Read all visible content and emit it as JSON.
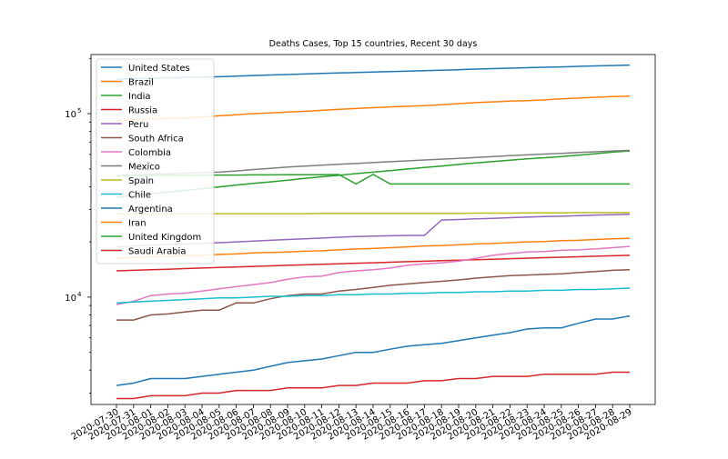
{
  "chart_data": {
    "type": "line",
    "title": "Deaths Cases, Top 15 countries, Recent 30 days",
    "xlabel": "",
    "ylabel": "",
    "y_scale": "log",
    "ylim": [
      2600,
      210000
    ],
    "grid": false,
    "legend_position": "upper-left",
    "x": [
      "2020-07-30",
      "2020-07-31",
      "2020-08-01",
      "2020-08-02",
      "2020-08-03",
      "2020-08-04",
      "2020-08-05",
      "2020-08-06",
      "2020-08-07",
      "2020-08-08",
      "2020-08-09",
      "2020-08-10",
      "2020-08-11",
      "2020-08-12",
      "2020-08-13",
      "2020-08-14",
      "2020-08-15",
      "2020-08-16",
      "2020-08-17",
      "2020-08-18",
      "2020-08-19",
      "2020-08-20",
      "2020-08-21",
      "2020-08-22",
      "2020-08-23",
      "2020-08-24",
      "2020-08-25",
      "2020-08-26",
      "2020-08-27",
      "2020-08-28",
      "2020-08-29"
    ],
    "y_ticks": [
      {
        "value": 10000,
        "label": "10",
        "exponent": "4"
      },
      {
        "value": 100000,
        "label": "10",
        "exponent": "5"
      }
    ],
    "series": [
      {
        "name": "United States",
        "color": "#1f77b4",
        "values": [
          154000,
          155200,
          156000,
          156800,
          157300,
          157900,
          158900,
          160100,
          161300,
          162400,
          163400,
          164500,
          165600,
          166600,
          167600,
          168700,
          169600,
          170500,
          171500,
          172400,
          173600,
          174900,
          175900,
          177000,
          178000,
          179000,
          179900,
          181000,
          182000,
          183000,
          184000
        ]
      },
      {
        "name": "Brazil",
        "color": "#ff7f0e",
        "values": [
          91300,
          92500,
          93600,
          94100,
          94700,
          95800,
          97300,
          98600,
          100000,
          101000,
          102000,
          103000,
          104200,
          105500,
          106600,
          107800,
          108800,
          109700,
          110500,
          111900,
          113400,
          114800,
          115900,
          117000,
          117800,
          118800,
          120400,
          121600,
          122800,
          123900,
          124900
        ]
      },
      {
        "name": "India",
        "color": "#2ca02c",
        "values": [
          34900,
          35800,
          36600,
          37400,
          38200,
          39000,
          39900,
          40800,
          41700,
          42500,
          43400,
          44400,
          45300,
          46100,
          47100,
          48000,
          48900,
          49900,
          50900,
          51800,
          52900,
          53900,
          54800,
          55800,
          56700,
          57500,
          58400,
          59400,
          60500,
          61700,
          62600
        ]
      },
      {
        "name": "Russia",
        "color": "#d62728",
        "values": [
          13900,
          14000,
          14100,
          14200,
          14300,
          14400,
          14500,
          14600,
          14700,
          14800,
          14900,
          15000,
          15100,
          15200,
          15300,
          15400,
          15500,
          15600,
          15700,
          15800,
          15900,
          16000,
          16100,
          16200,
          16300,
          16400,
          16500,
          16600,
          16700,
          16800,
          16900
        ]
      },
      {
        "name": "Peru",
        "color": "#9467bd",
        "values": [
          18800,
          19000,
          19200,
          19400,
          19400,
          19600,
          19800,
          20000,
          20200,
          20400,
          20600,
          20800,
          21000,
          21200,
          21400,
          21500,
          21600,
          21700,
          21700,
          26300,
          26500,
          26700,
          26900,
          27100,
          27300,
          27500,
          27600,
          27800,
          28000,
          28100,
          28300
        ]
      },
      {
        "name": "South Africa",
        "color": "#8c564b",
        "values": [
          7500,
          7500,
          8000,
          8100,
          8300,
          8500,
          8500,
          9300,
          9300,
          9800,
          10200,
          10400,
          10400,
          10800,
          11000,
          11300,
          11600,
          11800,
          12000,
          12200,
          12400,
          12700,
          12900,
          13100,
          13200,
          13300,
          13400,
          13600,
          13800,
          14000,
          14100
        ]
      },
      {
        "name": "Colombia",
        "color": "#e377c2",
        "values": [
          9100,
          9500,
          10200,
          10400,
          10500,
          10800,
          11100,
          11400,
          11700,
          12000,
          12500,
          12900,
          13000,
          13600,
          13900,
          14100,
          14400,
          14900,
          15200,
          15400,
          15700,
          16300,
          16900,
          17300,
          17600,
          17700,
          18000,
          18100,
          18300,
          18600,
          18900
        ]
      },
      {
        "name": "Mexico",
        "color": "#7f7f7f",
        "values": [
          46000,
          46400,
          46700,
          47000,
          47400,
          47700,
          48000,
          48700,
          49600,
          50300,
          51200,
          51800,
          52400,
          53000,
          53500,
          54100,
          54700,
          55300,
          55900,
          56500,
          57000,
          57700,
          58400,
          59000,
          59600,
          60200,
          60800,
          61400,
          62000,
          62600,
          63100
        ]
      },
      {
        "name": "Spain",
        "color": "#bcbd22",
        "values": [
          28400,
          28400,
          28400,
          28400,
          28500,
          28500,
          28500,
          28500,
          28500,
          28500,
          28500,
          28500,
          28600,
          28600,
          28600,
          28600,
          28600,
          28600,
          28600,
          28600,
          28600,
          28700,
          28700,
          28700,
          28800,
          28800,
          28800,
          28900,
          28900,
          28900,
          28900
        ]
      },
      {
        "name": "Chile",
        "color": "#17becf",
        "values": [
          9300,
          9400,
          9500,
          9600,
          9700,
          9800,
          9900,
          9900,
          10000,
          10100,
          10100,
          10200,
          10200,
          10300,
          10300,
          10400,
          10400,
          10500,
          10500,
          10600,
          10600,
          10700,
          10700,
          10800,
          10800,
          10900,
          10900,
          11000,
          11000,
          11100,
          11200
        ]
      },
      {
        "name": "Argentina",
        "color": "#1f77b4",
        "values": [
          3300,
          3400,
          3600,
          3600,
          3600,
          3700,
          3800,
          3900,
          4000,
          4200,
          4400,
          4500,
          4600,
          4800,
          5000,
          5000,
          5200,
          5400,
          5500,
          5600,
          5800,
          6000,
          6200,
          6400,
          6700,
          6800,
          6800,
          7200,
          7600,
          7600,
          7900
        ]
      },
      {
        "name": "Iran",
        "color": "#ff7f0e",
        "values": [
          16300,
          16500,
          16600,
          16700,
          16800,
          16900,
          17100,
          17200,
          17400,
          17500,
          17600,
          17800,
          17900,
          18100,
          18300,
          18400,
          18600,
          18800,
          19000,
          19100,
          19300,
          19500,
          19600,
          19800,
          20000,
          20100,
          20300,
          20400,
          20600,
          20800,
          20900
        ]
      },
      {
        "name": "United Kingdom",
        "color": "#2ca02c",
        "values": [
          45900,
          46000,
          46100,
          46100,
          46100,
          46200,
          46300,
          46300,
          46400,
          46400,
          46500,
          46500,
          46500,
          46600,
          41400,
          46700,
          41400,
          41400,
          41400,
          41400,
          41400,
          41400,
          41400,
          41400,
          41400,
          41400,
          41400,
          41400,
          41400,
          41400,
          41400
        ]
      },
      {
        "name": "Saudi Arabia",
        "color": "#d62728",
        "values": [
          2800,
          2800,
          2900,
          2900,
          2900,
          3000,
          3000,
          3100,
          3100,
          3100,
          3200,
          3200,
          3200,
          3300,
          3300,
          3400,
          3400,
          3400,
          3500,
          3500,
          3600,
          3600,
          3700,
          3700,
          3700,
          3800,
          3800,
          3800,
          3800,
          3900,
          3900
        ]
      }
    ]
  }
}
